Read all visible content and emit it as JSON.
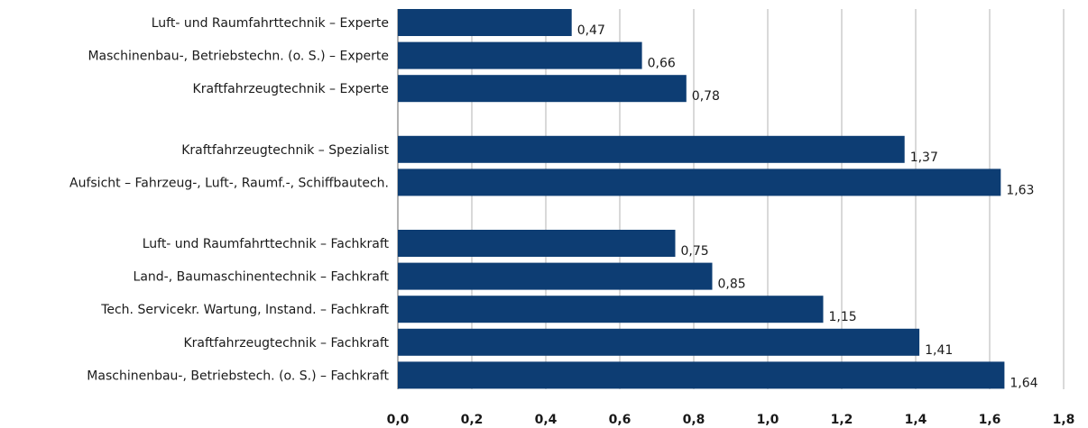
{
  "chart_data": {
    "type": "bar",
    "orientation": "horizontal",
    "title": "",
    "xlabel": "",
    "ylabel": "",
    "xlim": [
      0,
      1.8
    ],
    "x_ticks": [
      "0,0",
      "0,2",
      "0,4",
      "0,6",
      "0,8",
      "1,0",
      "1,2",
      "1,4",
      "1,6",
      "1,8"
    ],
    "grid": "vertical",
    "bar_color": "#0d3d73",
    "groups": [
      {
        "categories": [
          "Luft- und Raumfahrttechnik – Experte",
          "Maschinenbau-, Betriebstechn. (o. S.) – Experte",
          "Kraftfahrzeugtechnik – Experte"
        ],
        "values": [
          0.47,
          0.66,
          0.78
        ],
        "value_labels": [
          "0,47",
          "0,66",
          "0,78"
        ]
      },
      {
        "categories": [
          "Kraftfahrzeugtechnik – Spezialist",
          "Aufsicht – Fahrzeug-, Luft-, Raumf.-, Schiffbautech."
        ],
        "values": [
          1.37,
          1.63
        ],
        "value_labels": [
          "1,37",
          "1,63"
        ]
      },
      {
        "categories": [
          "Luft- und Raumfahrttechnik – Fachkraft",
          "Land-, Baumaschinentechnik – Fachkraft",
          "Tech. Servicekr. Wartung, Instand. – Fachkraft",
          "Kraftfahrzeugtechnik – Fachkraft",
          "Maschinenbau-, Betriebstech. (o. S.) – Fachkraft"
        ],
        "values": [
          0.75,
          0.85,
          1.15,
          1.41,
          1.64
        ],
        "value_labels": [
          "0,75",
          "0,85",
          "1,15",
          "1,41",
          "1,64"
        ]
      }
    ]
  }
}
